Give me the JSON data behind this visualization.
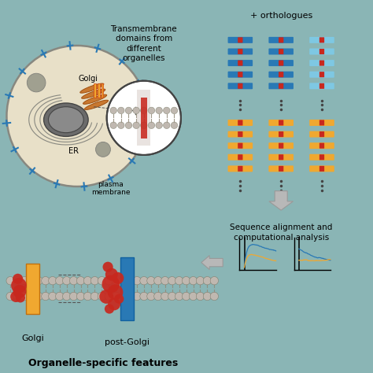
{
  "bg_color": "#8ab5b5",
  "cell_bg": "#e8e0c8",
  "title_text": "Transmembrane\ndomains from\ndifferent\norganelles",
  "ortho_label": "+ orthologues",
  "seq_align_label": "Sequence alignment and\ncomputational analysis",
  "organelle_label": "Organelle-specific features",
  "golgi_label": "Golgi",
  "post_golgi_label": "post-Golgi",
  "er_label": "ER",
  "pm_label": "plasma\nmembrane",
  "blue_color": "#2979b5",
  "light_blue_color": "#7ec8e3",
  "orange_color": "#f0a830",
  "red_color": "#c8281e",
  "dark_gray": "#555555",
  "arrow_gray": "#b8b8b8",
  "lipid_gray": "#c0b8b0",
  "golgi_orange": "#c87830",
  "nucleus_dark": "#6b6b6b",
  "nucleus_light": "#8a8a8a",
  "organelle_gray": "#a0a090",
  "er_gray": "#888880"
}
